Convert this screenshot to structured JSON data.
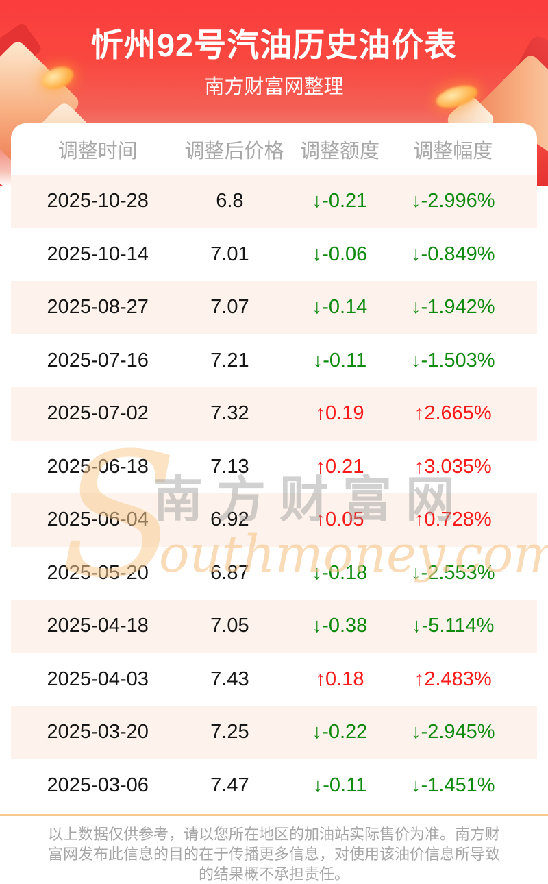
{
  "page": {
    "title": "忻州92号汽油历史油价表",
    "subtitle": "南方财富网整理"
  },
  "table": {
    "headers": [
      "调整时间",
      "调整后价格",
      "调整额度",
      "调整幅度"
    ],
    "rows": [
      {
        "date": "2025-10-28",
        "price": "6.8",
        "change": "↓-0.21",
        "pct": "↓-2.996%",
        "dir": "down"
      },
      {
        "date": "2025-10-14",
        "price": "7.01",
        "change": "↓-0.06",
        "pct": "↓-0.849%",
        "dir": "down"
      },
      {
        "date": "2025-08-27",
        "price": "7.07",
        "change": "↓-0.14",
        "pct": "↓-1.942%",
        "dir": "down"
      },
      {
        "date": "2025-07-16",
        "price": "7.21",
        "change": "↓-0.11",
        "pct": "↓-1.503%",
        "dir": "down"
      },
      {
        "date": "2025-07-02",
        "price": "7.32",
        "change": "↑0.19",
        "pct": "↑2.665%",
        "dir": "up"
      },
      {
        "date": "2025-06-18",
        "price": "7.13",
        "change": "↑0.21",
        "pct": "↑3.035%",
        "dir": "up"
      },
      {
        "date": "2025-06-04",
        "price": "6.92",
        "change": "↑0.05",
        "pct": "↑0.728%",
        "dir": "up"
      },
      {
        "date": "2025-05-20",
        "price": "6.87",
        "change": "↓-0.18",
        "pct": "↓-2.553%",
        "dir": "down"
      },
      {
        "date": "2025-04-18",
        "price": "7.05",
        "change": "↓-0.38",
        "pct": "↓-5.114%",
        "dir": "down"
      },
      {
        "date": "2025-04-03",
        "price": "7.43",
        "change": "↑0.18",
        "pct": "↑2.483%",
        "dir": "up"
      },
      {
        "date": "2025-03-20",
        "price": "7.25",
        "change": "↓-0.22",
        "pct": "↓-2.945%",
        "dir": "down"
      },
      {
        "date": "2025-03-06",
        "price": "7.47",
        "change": "↓-0.11",
        "pct": "↓-1.451%",
        "dir": "down"
      }
    ]
  },
  "watermark": {
    "initial": "S",
    "cn": "南方财富网",
    "en": "outhmoney.com"
  },
  "footer": {
    "disclaimer": "以上数据仅供参考，请以您所在地区的加油站实际售价为准。南方财富网发布此信息的目的在于传播更多信息，对使用该油价信息所导致的结果概不承担责任。"
  },
  "colors": {
    "hero_red": "#fa3d3d",
    "up_red": "#f91a1a",
    "down_green": "#0f8a0f",
    "stripe_bg": "#fdf3ec",
    "divider_orange": "#f8c98f",
    "coin_gold": "#ffb44d",
    "header_gray": "#a8a8a8"
  }
}
